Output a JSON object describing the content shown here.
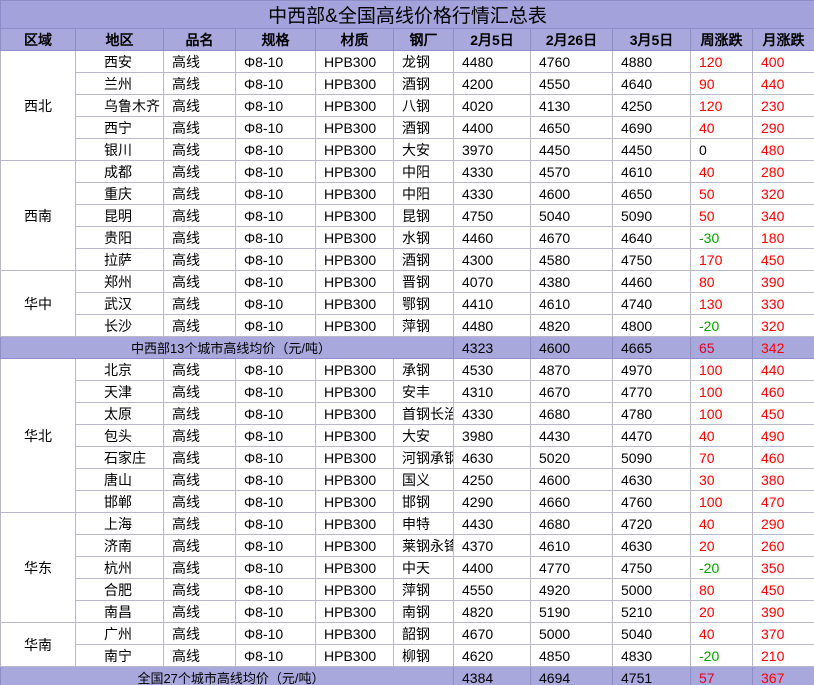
{
  "title": "中西部&全国高线价格行情汇总表",
  "headers": [
    "区域",
    "地区",
    "品名",
    "规格",
    "材质",
    "钢厂",
    "2月5日",
    "2月26日",
    "3月5日",
    "周涨跌",
    "月涨跌"
  ],
  "sections": [
    {
      "groups": [
        {
          "region": "西北",
          "rows": [
            [
              "西安",
              "高线",
              "Φ8-10",
              "HPB300",
              "龙钢",
              4480,
              4760,
              4880,
              120,
              400
            ],
            [
              "兰州",
              "高线",
              "Φ8-10",
              "HPB300",
              "酒钢",
              4200,
              4550,
              4640,
              90,
              440
            ],
            [
              "乌鲁木齐",
              "高线",
              "Φ8-10",
              "HPB300",
              "八钢",
              4020,
              4130,
              4250,
              120,
              230
            ],
            [
              "西宁",
              "高线",
              "Φ8-10",
              "HPB300",
              "酒钢",
              4400,
              4650,
              4690,
              40,
              290
            ],
            [
              "银川",
              "高线",
              "Φ8-10",
              "HPB300",
              "大安",
              3970,
              4450,
              4450,
              0,
              480
            ]
          ]
        },
        {
          "region": "西南",
          "rows": [
            [
              "成都",
              "高线",
              "Φ8-10",
              "HPB300",
              "中阳",
              4330,
              4570,
              4610,
              40,
              280
            ],
            [
              "重庆",
              "高线",
              "Φ8-10",
              "HPB300",
              "中阳",
              4330,
              4600,
              4650,
              50,
              320
            ],
            [
              "昆明",
              "高线",
              "Φ8-10",
              "HPB300",
              "昆钢",
              4750,
              5040,
              5090,
              50,
              340
            ],
            [
              "贵阳",
              "高线",
              "Φ8-10",
              "HPB300",
              "水钢",
              4460,
              4670,
              4640,
              -30,
              180
            ],
            [
              "拉萨",
              "高线",
              "Φ8-10",
              "HPB300",
              "酒钢",
              4300,
              4580,
              4750,
              170,
              450
            ]
          ]
        },
        {
          "region": "华中",
          "rows": [
            [
              "郑州",
              "高线",
              "Φ8-10",
              "HPB300",
              "晋钢",
              4070,
              4380,
              4460,
              80,
              390
            ],
            [
              "武汉",
              "高线",
              "Φ8-10",
              "HPB300",
              "鄂钢",
              4410,
              4610,
              4740,
              130,
              330
            ],
            [
              "长沙",
              "高线",
              "Φ8-10",
              "HPB300",
              "萍钢",
              4480,
              4820,
              4800,
              -20,
              320
            ]
          ]
        }
      ],
      "average": {
        "label": "中西部13个城市高线均价（元/吨）",
        "values": [
          4323,
          4600,
          4665,
          65,
          342
        ]
      }
    },
    {
      "groups": [
        {
          "region": "华北",
          "rows": [
            [
              "北京",
              "高线",
              "Φ8-10",
              "HPB300",
              "承钢",
              4530,
              4870,
              4970,
              100,
              440
            ],
            [
              "天津",
              "高线",
              "Φ8-10",
              "HPB300",
              "安丰",
              4310,
              4670,
              4770,
              100,
              460
            ],
            [
              "太原",
              "高线",
              "Φ8-10",
              "HPB300",
              "首钢长治",
              4330,
              4680,
              4780,
              100,
              450
            ],
            [
              "包头",
              "高线",
              "Φ8-10",
              "HPB300",
              "大安",
              3980,
              4430,
              4470,
              40,
              490
            ],
            [
              "石家庄",
              "高线",
              "Φ8-10",
              "HPB300",
              "河钢承钢",
              4630,
              5020,
              5090,
              70,
              460
            ],
            [
              "唐山",
              "高线",
              "Φ8-10",
              "HPB300",
              "国义",
              4250,
              4600,
              4630,
              30,
              380
            ],
            [
              "邯郸",
              "高线",
              "Φ8-10",
              "HPB300",
              "邯钢",
              4290,
              4660,
              4760,
              100,
              470
            ]
          ]
        },
        {
          "region": "华东",
          "rows": [
            [
              "上海",
              "高线",
              "Φ8-10",
              "HPB300",
              "申特",
              4430,
              4680,
              4720,
              40,
              290
            ],
            [
              "济南",
              "高线",
              "Φ8-10",
              "HPB300",
              "莱钢永锋",
              4370,
              4610,
              4630,
              20,
              260
            ],
            [
              "杭州",
              "高线",
              "Φ8-10",
              "HPB300",
              "中天",
              4400,
              4770,
              4750,
              -20,
              350
            ],
            [
              "合肥",
              "高线",
              "Φ8-10",
              "HPB300",
              "萍钢",
              4550,
              4920,
              5000,
              80,
              450
            ],
            [
              "南昌",
              "高线",
              "Φ8-10",
              "HPB300",
              "南钢",
              4820,
              5190,
              5210,
              20,
              390
            ]
          ]
        },
        {
          "region": "华南",
          "rows": [
            [
              "广州",
              "高线",
              "Φ8-10",
              "HPB300",
              "韶钢",
              4670,
              5000,
              5040,
              40,
              370
            ],
            [
              "南宁",
              "高线",
              "Φ8-10",
              "HPB300",
              "柳钢",
              4620,
              4850,
              4830,
              -20,
              210
            ]
          ]
        }
      ],
      "average": {
        "label": "全国27个城市高线均价（元/吨）",
        "values": [
          4384,
          4694,
          4751,
          57,
          367
        ]
      }
    }
  ]
}
